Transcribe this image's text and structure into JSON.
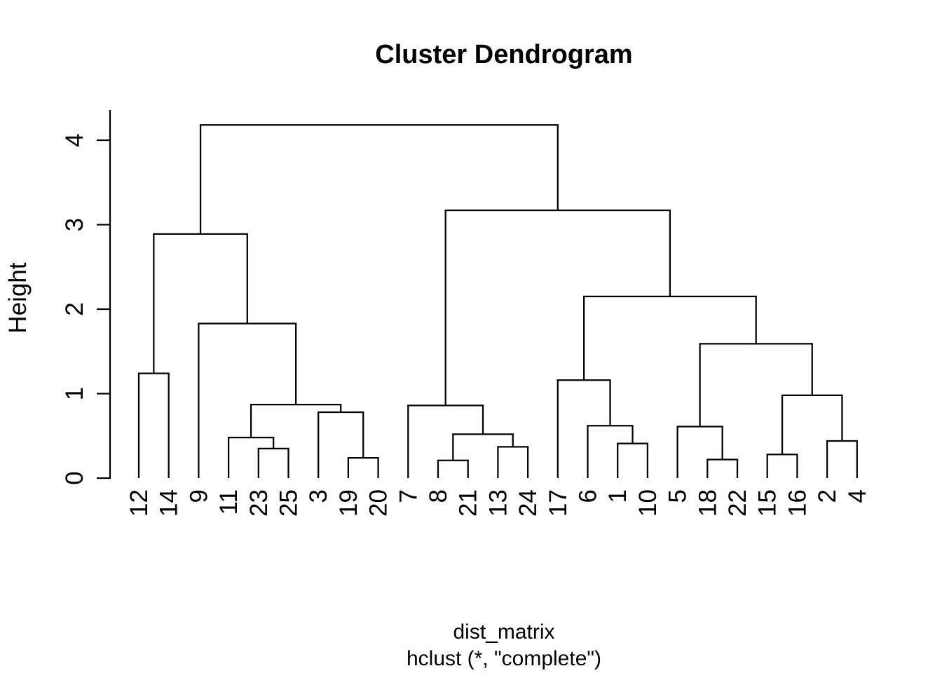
{
  "chart_data": {
    "type": "dendrogram",
    "title": "Cluster Dendrogram",
    "ylabel": "Height",
    "xlabel": "dist_matrix",
    "sub": "hclust (*, \"complete\")",
    "linkage": "complete",
    "y_ticks": [
      0,
      1,
      2,
      3,
      4
    ],
    "ylim": [
      0,
      4.36
    ],
    "grid": false,
    "colors": {
      "line": "#000000",
      "text": "#000000",
      "background": "#ffffff"
    },
    "leaf_order": [
      "12",
      "14",
      "9",
      "11",
      "23",
      "25",
      "3",
      "19",
      "20",
      "7",
      "8",
      "21",
      "13",
      "24",
      "17",
      "6",
      "1",
      "10",
      "5",
      "18",
      "22",
      "15",
      "16",
      "2",
      "4"
    ],
    "tree": {
      "h": 4.18,
      "c": [
        {
          "h": 2.89,
          "c": [
            {
              "h": 1.24,
              "c": [
                "12",
                "14"
              ]
            },
            {
              "h": 1.83,
              "c": [
                "9",
                {
                  "h": 0.87,
                  "c": [
                    {
                      "h": 0.48,
                      "c": [
                        "11",
                        {
                          "h": 0.35,
                          "c": [
                            "23",
                            "25"
                          ]
                        }
                      ]
                    },
                    {
                      "h": 0.78,
                      "c": [
                        "3",
                        {
                          "h": 0.24,
                          "c": [
                            "19",
                            "20"
                          ]
                        }
                      ]
                    }
                  ]
                }
              ]
            }
          ]
        },
        {
          "h": 3.17,
          "c": [
            {
              "h": 0.86,
              "c": [
                "7",
                {
                  "h": 0.52,
                  "c": [
                    {
                      "h": 0.21,
                      "c": [
                        "8",
                        "21"
                      ]
                    },
                    {
                      "h": 0.37,
                      "c": [
                        "13",
                        "24"
                      ]
                    }
                  ]
                }
              ]
            },
            {
              "h": 2.15,
              "c": [
                {
                  "h": 1.16,
                  "c": [
                    "17",
                    {
                      "h": 0.62,
                      "c": [
                        "6",
                        {
                          "h": 0.41,
                          "c": [
                            "1",
                            "10"
                          ]
                        }
                      ]
                    }
                  ]
                },
                {
                  "h": 1.59,
                  "c": [
                    {
                      "h": 0.61,
                      "c": [
                        "5",
                        {
                          "h": 0.22,
                          "c": [
                            "18",
                            "22"
                          ]
                        }
                      ]
                    },
                    {
                      "h": 0.98,
                      "c": [
                        {
                          "h": 0.28,
                          "c": [
                            "15",
                            "16"
                          ]
                        },
                        {
                          "h": 0.44,
                          "c": [
                            "2",
                            "4"
                          ]
                        }
                      ]
                    }
                  ]
                }
              ]
            }
          ]
        }
      ]
    }
  }
}
